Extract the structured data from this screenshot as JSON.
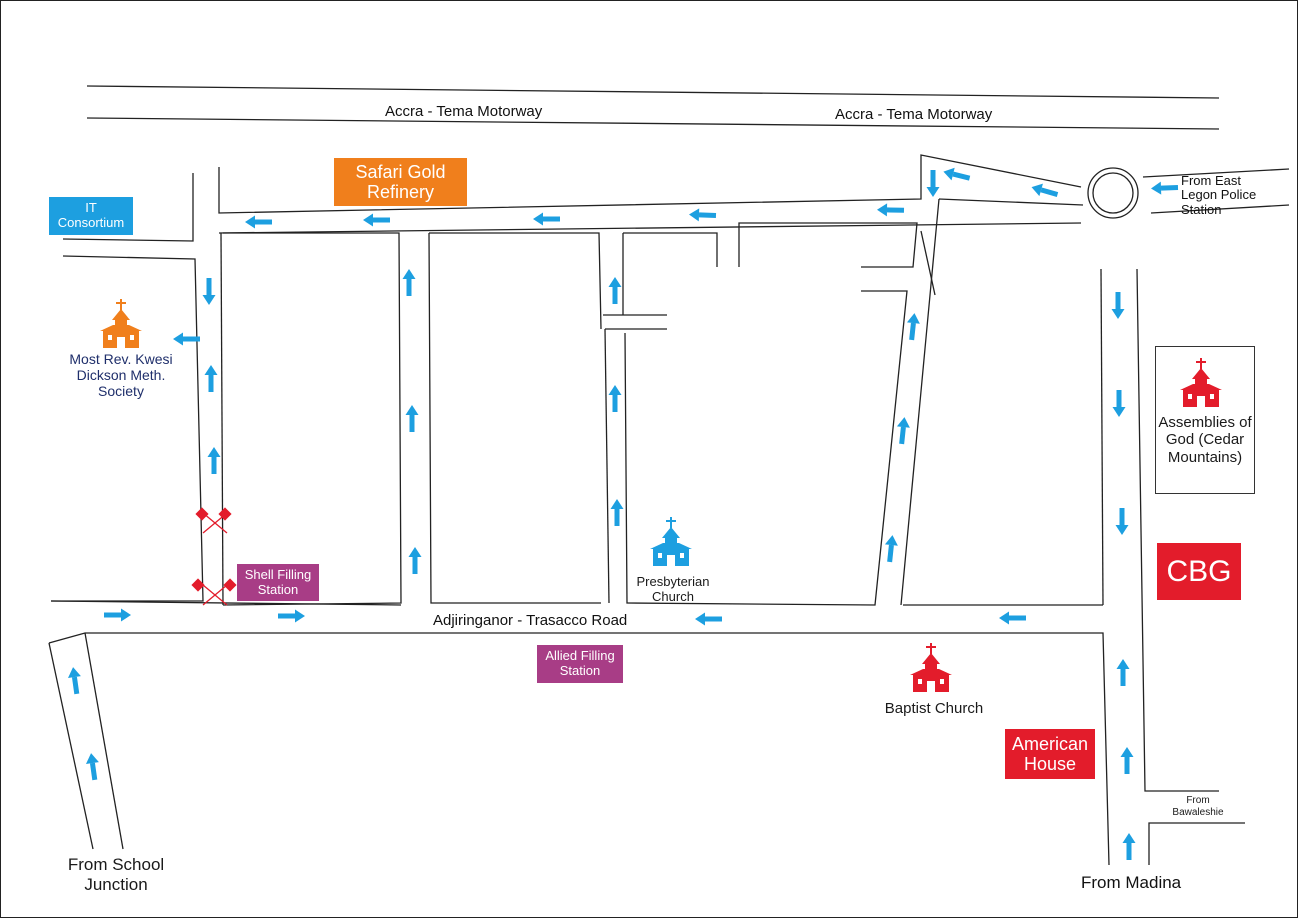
{
  "roads": {
    "motorway_left": "Accra - Tema Motorway",
    "motorway_right": "Accra - Tema Motorway",
    "main_road": "Adjiringanor - Trasacco Road"
  },
  "places": {
    "safari_gold": "Safari Gold Refinery",
    "it_consortium": "IT Consortium",
    "shell": "Shell Filling Station",
    "allied": "Allied Filling Station",
    "cbg": "CBG",
    "american_house": "American House",
    "methodist": "Most Rev. Kwesi Dickson Meth. Society",
    "presbyterian": "Presbyterian Church",
    "baptist": "Baptist Church",
    "assemblies": "Assemblies of God (Cedar Mountains)"
  },
  "directions": {
    "east_legon": "From East Legon Police Station",
    "school_junction": "From School Junction",
    "madina": "From Madina",
    "bawaleshie": "From Bawaleshie"
  },
  "colors": {
    "road_line": "#222222",
    "arrow": "#1d9fe0",
    "orange": "#f07f1c",
    "blue": "#1d9fe0",
    "purple": "#a83d86",
    "red": "#e31c2b"
  }
}
